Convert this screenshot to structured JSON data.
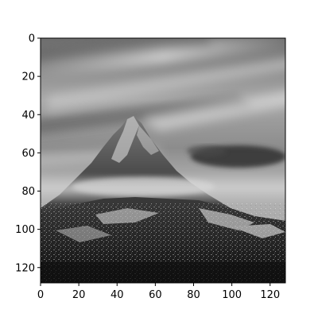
{
  "chart_data": {
    "type": "image",
    "title": "",
    "xlabel": "",
    "ylabel": "",
    "xlim": [
      0,
      128
    ],
    "ylim": [
      128,
      0
    ],
    "xticks": [
      {
        "value": 0,
        "label": "0"
      },
      {
        "value": 20,
        "label": "20"
      },
      {
        "value": 40,
        "label": "40"
      },
      {
        "value": 60,
        "label": "60"
      },
      {
        "value": 80,
        "label": "80"
      },
      {
        "value": 100,
        "label": "100"
      },
      {
        "value": 120,
        "label": "120"
      }
    ],
    "yticks": [
      {
        "value": 0,
        "label": "0"
      },
      {
        "value": 20,
        "label": "20"
      },
      {
        "value": 40,
        "label": "40"
      },
      {
        "value": 60,
        "label": "60"
      },
      {
        "value": 80,
        "label": "80"
      },
      {
        "value": 100,
        "label": "100"
      },
      {
        "value": 120,
        "label": "120"
      }
    ],
    "grid": false,
    "legend": "none",
    "image": {
      "subject": "grayscale mountain peak under streaked cloudy sky",
      "sky_color": "#9a9a9a",
      "cloud_light_color": "#d8d8d8",
      "cloud_dark_color": "#3a3a3a",
      "mountain_color": "#4a4a4a",
      "mountain_shadow_color": "#1c1c1c",
      "mist_color": "#c8c8c8",
      "snow_color": "#e6e6e6"
    }
  }
}
